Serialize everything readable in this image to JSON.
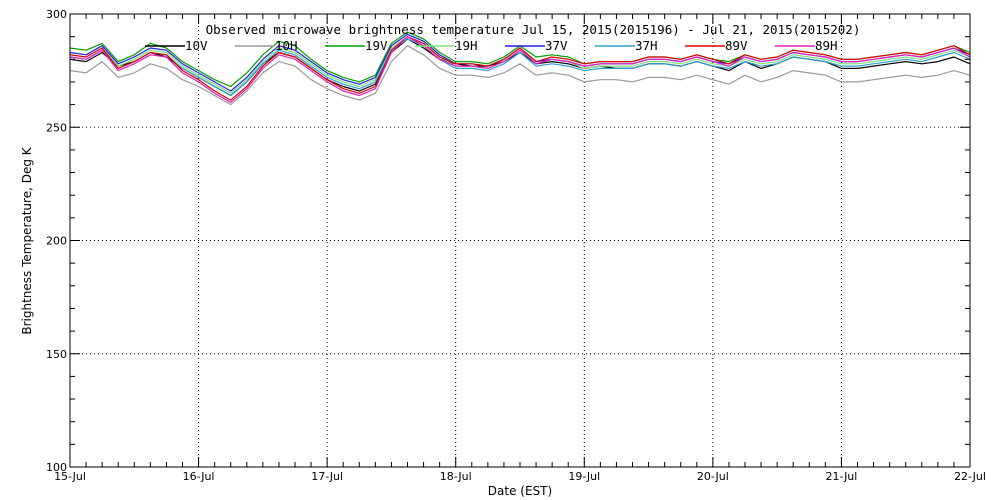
{
  "chart_data": {
    "type": "line",
    "title": "Observed microwave brightness temperature Jul 15, 2015(2015196) - Jul 21, 2015(2015202)",
    "xlabel": "Date (EST)",
    "ylabel": "Brightness Temperature, Deg K",
    "xlim": [
      "2015-07-15",
      "2015-07-22"
    ],
    "ylim": [
      100,
      300
    ],
    "x_ticks": [
      "15-Jul",
      "16-Jul",
      "17-Jul",
      "18-Jul",
      "19-Jul",
      "20-Jul",
      "21-Jul",
      "22-Jul"
    ],
    "y_ticks": [
      100,
      150,
      200,
      250,
      300
    ],
    "grid": true,
    "legend_position": "top",
    "x": [
      "2015-07-15 00:00",
      "2015-07-15 03:00",
      "2015-07-15 06:00",
      "2015-07-15 09:00",
      "2015-07-15 12:00",
      "2015-07-15 15:00",
      "2015-07-15 18:00",
      "2015-07-15 21:00",
      "2015-07-16 00:00",
      "2015-07-16 03:00",
      "2015-07-16 06:00",
      "2015-07-16 09:00",
      "2015-07-16 12:00",
      "2015-07-16 15:00",
      "2015-07-16 18:00",
      "2015-07-16 21:00",
      "2015-07-17 00:00",
      "2015-07-17 03:00",
      "2015-07-17 06:00",
      "2015-07-17 09:00",
      "2015-07-17 12:00",
      "2015-07-17 15:00",
      "2015-07-17 18:00",
      "2015-07-17 21:00",
      "2015-07-18 00:00",
      "2015-07-18 03:00",
      "2015-07-18 06:00",
      "2015-07-18 09:00",
      "2015-07-18 12:00",
      "2015-07-18 15:00",
      "2015-07-18 18:00",
      "2015-07-18 21:00",
      "2015-07-19 00:00",
      "2015-07-19 03:00",
      "2015-07-19 06:00",
      "2015-07-19 09:00",
      "2015-07-19 12:00",
      "2015-07-19 15:00",
      "2015-07-19 18:00",
      "2015-07-19 21:00",
      "2015-07-20 00:00",
      "2015-07-20 03:00",
      "2015-07-20 06:00",
      "2015-07-20 09:00",
      "2015-07-20 12:00",
      "2015-07-20 15:00",
      "2015-07-20 18:00",
      "2015-07-20 21:00",
      "2015-07-21 00:00",
      "2015-07-21 03:00",
      "2015-07-21 06:00",
      "2015-07-21 09:00",
      "2015-07-21 12:00",
      "2015-07-21 15:00",
      "2015-07-21 18:00",
      "2015-07-21 21:00",
      "2015-07-22 00:00"
    ],
    "series": [
      {
        "name": "10V",
        "color": "#000000",
        "values": [
          280,
          279,
          283,
          277,
          279,
          283,
          281,
          276,
          272,
          268,
          264,
          270,
          278,
          283,
          281,
          276,
          271,
          268,
          266,
          269,
          283,
          289,
          285,
          280,
          278,
          277,
          277,
          279,
          283,
          278,
          279,
          278,
          276,
          277,
          276,
          276,
          278,
          278,
          277,
          279,
          277,
          275,
          279,
          276,
          278,
          281,
          280,
          279,
          276,
          276,
          277,
          278,
          279,
          278,
          279,
          281,
          278
        ]
      },
      {
        "name": "10H",
        "color": "#9a9a9a",
        "values": [
          275,
          274,
          279,
          272,
          274,
          278,
          276,
          271,
          268,
          264,
          260,
          266,
          274,
          279,
          277,
          271,
          267,
          264,
          262,
          265,
          279,
          286,
          282,
          276,
          273,
          273,
          272,
          274,
          278,
          273,
          274,
          273,
          270,
          271,
          271,
          270,
          272,
          272,
          271,
          273,
          271,
          269,
          273,
          270,
          272,
          275,
          274,
          273,
          270,
          270,
          271,
          272,
          273,
          272,
          273,
          275,
          273
        ]
      },
      {
        "name": "19V",
        "color": "#00a000",
        "values": [
          285,
          284,
          287,
          279,
          282,
          287,
          285,
          279,
          275,
          271,
          268,
          274,
          282,
          288,
          286,
          280,
          275,
          272,
          270,
          273,
          287,
          292,
          289,
          283,
          279,
          279,
          278,
          281,
          286,
          281,
          282,
          281,
          278,
          279,
          279,
          279,
          281,
          281,
          280,
          282,
          280,
          279,
          282,
          280,
          281,
          284,
          283,
          282,
          280,
          280,
          281,
          282,
          283,
          282,
          284,
          286,
          283
        ]
      },
      {
        "name": "19H",
        "color": "#7fe07f",
        "values": [
          282,
          281,
          285,
          277,
          280,
          284,
          283,
          277,
          273,
          269,
          265,
          271,
          279,
          285,
          283,
          278,
          273,
          270,
          268,
          271,
          285,
          290,
          287,
          281,
          277,
          277,
          276,
          279,
          284,
          279,
          280,
          279,
          276,
          277,
          277,
          277,
          279,
          279,
          278,
          280,
          278,
          277,
          280,
          278,
          279,
          282,
          281,
          280,
          278,
          278,
          279,
          280,
          281,
          280,
          282,
          284,
          281
        ]
      },
      {
        "name": "37V",
        "color": "#2020e0",
        "values": [
          283,
          282,
          286,
          278,
          281,
          285,
          284,
          278,
          274,
          270,
          266,
          272,
          280,
          286,
          284,
          279,
          274,
          271,
          269,
          272,
          286,
          291,
          288,
          282,
          278,
          278,
          277,
          280,
          285,
          279,
          280,
          279,
          277,
          278,
          278,
          278,
          280,
          280,
          279,
          281,
          279,
          278,
          281,
          279,
          280,
          283,
          282,
          281,
          279,
          279,
          280,
          281,
          282,
          281,
          283,
          285,
          282
        ]
      },
      {
        "name": "37H",
        "color": "#30a0d0",
        "values": [
          281,
          280,
          284,
          276,
          279,
          283,
          282,
          276,
          272,
          268,
          264,
          270,
          278,
          284,
          282,
          277,
          272,
          269,
          267,
          270,
          284,
          289,
          286,
          280,
          276,
          276,
          275,
          278,
          283,
          277,
          278,
          277,
          275,
          276,
          276,
          276,
          278,
          278,
          277,
          279,
          277,
          276,
          279,
          277,
          278,
          281,
          280,
          279,
          277,
          277,
          278,
          279,
          280,
          279,
          281,
          283,
          280
        ]
      },
      {
        "name": "89V",
        "color": "#e00000",
        "values": [
          282,
          281,
          285,
          276,
          279,
          283,
          282,
          275,
          271,
          266,
          262,
          268,
          277,
          283,
          281,
          276,
          271,
          267,
          265,
          268,
          284,
          290,
          287,
          281,
          278,
          278,
          277,
          280,
          285,
          279,
          281,
          280,
          278,
          279,
          279,
          279,
          281,
          281,
          280,
          282,
          280,
          278,
          282,
          280,
          281,
          284,
          283,
          282,
          280,
          280,
          281,
          282,
          283,
          282,
          284,
          286,
          282
        ]
      },
      {
        "name": "89H",
        "color": "#e020c0",
        "values": [
          281,
          280,
          284,
          275,
          278,
          282,
          281,
          274,
          270,
          265,
          261,
          267,
          276,
          282,
          280,
          275,
          270,
          266,
          264,
          267,
          283,
          290,
          286,
          280,
          277,
          277,
          276,
          279,
          284,
          278,
          280,
          279,
          277,
          278,
          278,
          278,
          280,
          280,
          279,
          281,
          279,
          277,
          281,
          279,
          280,
          283,
          282,
          281,
          279,
          279,
          280,
          281,
          282,
          281,
          283,
          285,
          281
        ]
      }
    ]
  }
}
